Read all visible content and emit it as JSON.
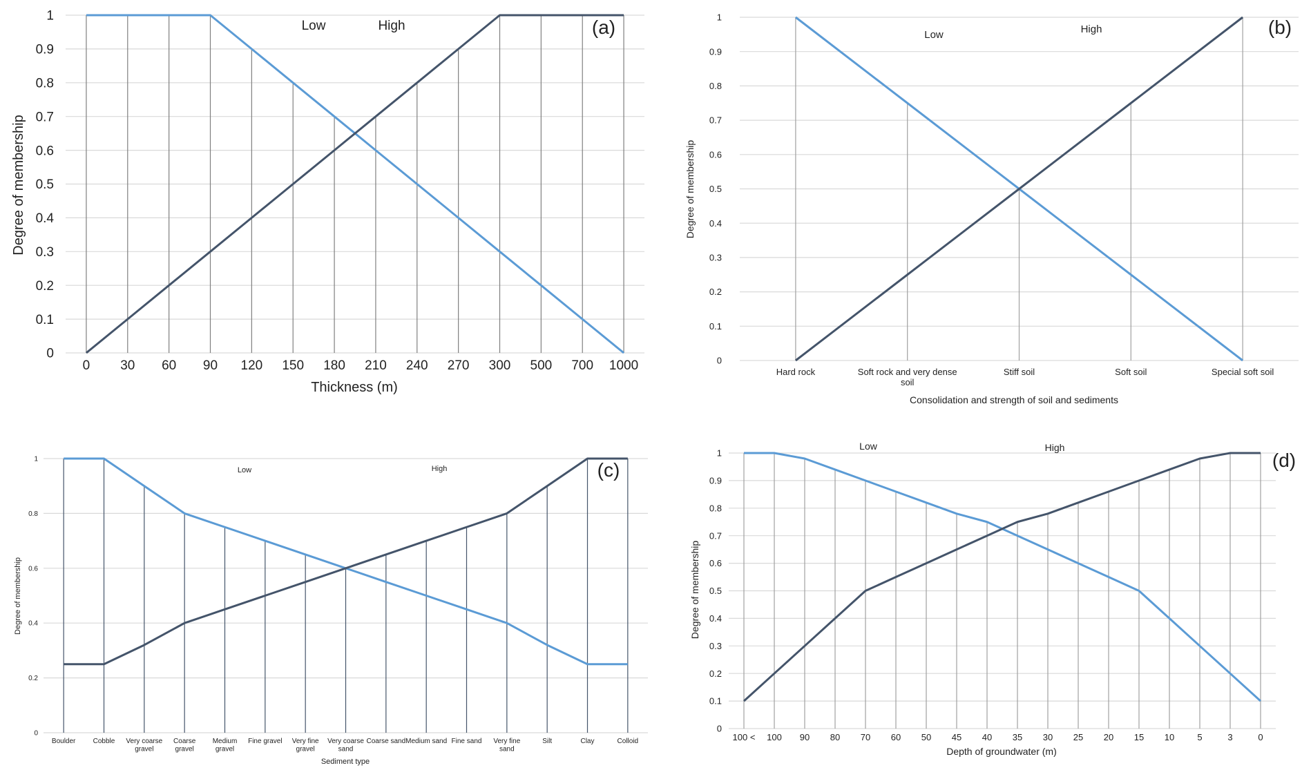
{
  "chart_data": [
    {
      "panel": "(a)",
      "type": "line",
      "xlabel": "Thickness (m)",
      "ylabel": "Degree of membership",
      "ylim": [
        0,
        1
      ],
      "yticks": [
        "0",
        "0.1",
        "0.2",
        "0.3",
        "0.4",
        "0.5",
        "0.6",
        "0.7",
        "0.8",
        "0.9",
        "1"
      ],
      "categories": [
        "0",
        "30",
        "60",
        "90",
        "120",
        "150",
        "180",
        "210",
        "240",
        "270",
        "300",
        "500",
        "700",
        "1000"
      ],
      "series": [
        {
          "name": "Low",
          "color": "#5B9BD5",
          "values": [
            1,
            1,
            1,
            1,
            0.9,
            0.8,
            0.7,
            0.6,
            0.5,
            0.4,
            0.3,
            0.2,
            0.1,
            0
          ]
        },
        {
          "name": "High",
          "color": "#44546A",
          "values": [
            0,
            0.1,
            0.2,
            0.3,
            0.4,
            0.5,
            0.6,
            0.7,
            0.8,
            0.9,
            1,
            1,
            1,
            1
          ]
        }
      ]
    },
    {
      "panel": "(b)",
      "type": "line",
      "xlabel": "Consolidation and strength of soil and sediments",
      "ylabel": "Degree of membership",
      "ylim": [
        0,
        1
      ],
      "yticks": [
        "0",
        "0.1",
        "0.2",
        "0.3",
        "0.4",
        "0.5",
        "0.6",
        "0.7",
        "0.8",
        "0.9",
        "1"
      ],
      "categories": [
        "Hard rock",
        "Soft rock and very dense soil",
        "Stiff soil",
        "Soft soil",
        "Special soft soil"
      ],
      "series": [
        {
          "name": "Low",
          "color": "#5B9BD5",
          "values": [
            1,
            0.75,
            0.5,
            0.25,
            0
          ]
        },
        {
          "name": "High",
          "color": "#44546A",
          "values": [
            0,
            0.25,
            0.5,
            0.75,
            1
          ]
        }
      ]
    },
    {
      "panel": "(c)",
      "type": "line",
      "xlabel": "Sediment type",
      "ylabel": "Degree of membership",
      "ylim": [
        0,
        1
      ],
      "yticks": [
        "0",
        "0.2",
        "0.4",
        "0.6",
        "0.8",
        "1"
      ],
      "categories": [
        "Boulder",
        "Cobble",
        "Very coarse gravel",
        "Coarse gravel",
        "Medium gravel",
        "Fine gravel",
        "Very fine gravel",
        "Very coarse sand",
        "Coarse sand",
        "Medium sand",
        "Fine sand",
        "Very fine sand",
        "Silt",
        "Clay",
        "Colloid"
      ],
      "series": [
        {
          "name": "Low",
          "color": "#5B9BD5",
          "values": [
            1,
            1,
            0.9,
            0.8,
            0.75,
            0.7,
            0.65,
            0.6,
            0.55,
            0.5,
            0.45,
            0.4,
            0.32,
            0.25,
            0.25
          ]
        },
        {
          "name": "High",
          "color": "#44546A",
          "values": [
            0.25,
            0.25,
            0.32,
            0.4,
            0.45,
            0.5,
            0.55,
            0.6,
            0.65,
            0.7,
            0.75,
            0.8,
            0.9,
            1,
            1
          ]
        }
      ]
    },
    {
      "panel": "(d)",
      "type": "line",
      "xlabel": "Depth of groundwater (m)",
      "ylabel": "Degree of membership",
      "ylim": [
        0,
        1
      ],
      "yticks": [
        "0",
        "0.1",
        "0.2",
        "0.3",
        "0.4",
        "0.5",
        "0.6",
        "0.7",
        "0.8",
        "0.9",
        "1"
      ],
      "categories": [
        "100 <",
        "100",
        "90",
        "80",
        "70",
        "60",
        "50",
        "45",
        "40",
        "35",
        "30",
        "25",
        "20",
        "15",
        "10",
        "5",
        "3",
        "0"
      ],
      "series": [
        {
          "name": "Low",
          "color": "#5B9BD5",
          "values": [
            1,
            1,
            0.98,
            0.94,
            0.9,
            0.86,
            0.82,
            0.78,
            0.75,
            0.7,
            0.65,
            0.6,
            0.55,
            0.5,
            0.4,
            0.3,
            0.2,
            0.1
          ]
        },
        {
          "name": "High",
          "color": "#44546A",
          "values": [
            0.1,
            0.2,
            0.3,
            0.4,
            0.5,
            0.55,
            0.6,
            0.65,
            0.7,
            0.75,
            0.78,
            0.82,
            0.86,
            0.9,
            0.94,
            0.98,
            1,
            1
          ]
        }
      ]
    }
  ]
}
